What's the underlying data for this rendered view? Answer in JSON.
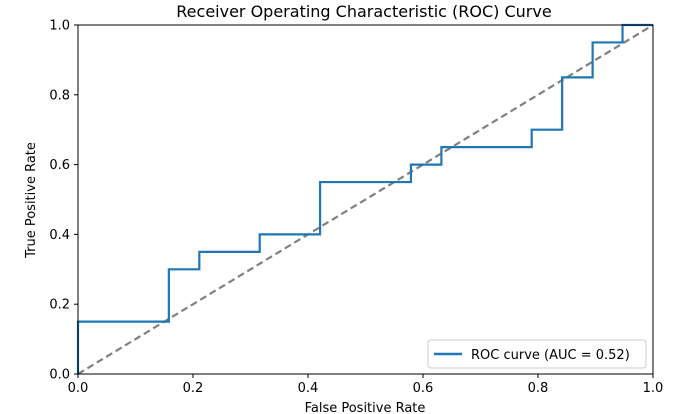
{
  "chart_data": {
    "type": "line",
    "title": "Receiver Operating Characteristic (ROC) Curve",
    "xlabel": "False Positive Rate",
    "ylabel": "True Positive Rate",
    "xlim": [
      0,
      1
    ],
    "ylim": [
      0,
      1
    ],
    "x_ticks": [
      "0.0",
      "0.2",
      "0.4",
      "0.6",
      "0.8",
      "1.0"
    ],
    "y_ticks": [
      "0.0",
      "0.2",
      "0.4",
      "0.6",
      "0.8",
      "1.0"
    ],
    "grid": false,
    "legend": {
      "placement": "lower-right"
    },
    "series": [
      {
        "name": "ROC curve (AUC = 0.52)",
        "color": "#1f77b4",
        "style": "solid",
        "x": [
          0.0,
          0.0,
          0.158,
          0.158,
          0.211,
          0.211,
          0.316,
          0.316,
          0.421,
          0.421,
          0.579,
          0.579,
          0.632,
          0.632,
          0.789,
          0.789,
          0.842,
          0.842,
          0.895,
          0.895,
          0.947,
          0.947,
          1.0
        ],
        "y": [
          0.0,
          0.15,
          0.15,
          0.3,
          0.3,
          0.35,
          0.35,
          0.4,
          0.4,
          0.55,
          0.55,
          0.6,
          0.6,
          0.65,
          0.65,
          0.7,
          0.7,
          0.85,
          0.85,
          0.95,
          0.95,
          1.0,
          1.0
        ]
      },
      {
        "color": "#808080",
        "style": "dashed",
        "x": [
          0,
          1
        ],
        "y": [
          0,
          1
        ]
      }
    ]
  }
}
